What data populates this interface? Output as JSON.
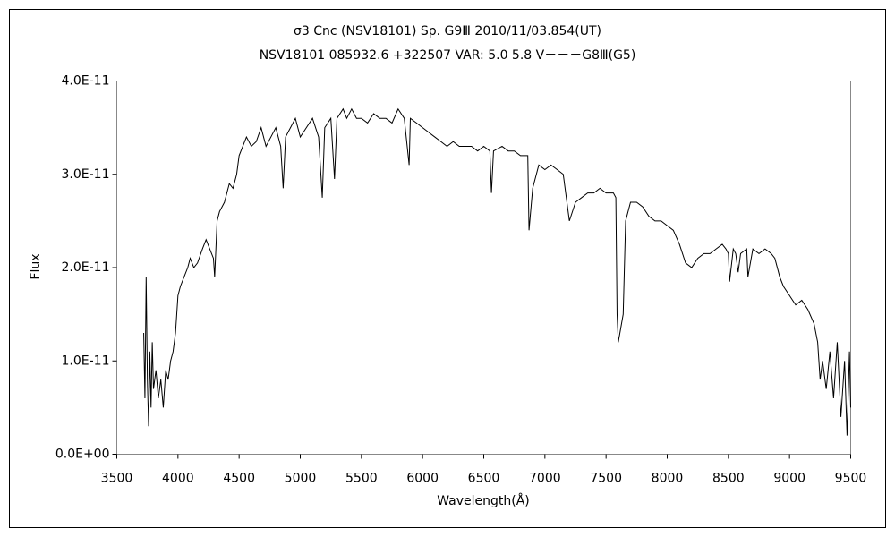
{
  "chart_data": {
    "type": "line",
    "title": "σ3 Cnc (NSV18101)     Sp. G9Ⅲ     2010/11/03.854(UT)",
    "subtitle": "NSV18101 085932.6 +322507 VAR: 5.0 5.8 V－－－G8Ⅲ(G5)",
    "x_label": "Wavelength(Å)",
    "y_label": "Flux",
    "xlim": [
      3500,
      9500
    ],
    "xticks": [
      3500,
      4000,
      4500,
      5000,
      5500,
      6000,
      6500,
      7000,
      7500,
      8000,
      8500,
      9000,
      9500
    ],
    "ylim": [
      0,
      4e-11
    ],
    "yticks": [
      {
        "value": 0,
        "label": "0.0E+00"
      },
      {
        "value": 1e-11,
        "label": "1.0E-11"
      },
      {
        "value": 2e-11,
        "label": "2.0E-11"
      },
      {
        "value": 3e-11,
        "label": "3.0E-11"
      },
      {
        "value": 4e-11,
        "label": "4.0E-11"
      }
    ],
    "series": [
      {
        "color": "#000000",
        "x": [
          3720,
          3730,
          3740,
          3750,
          3760,
          3770,
          3780,
          3790,
          3800,
          3820,
          3840,
          3860,
          3880,
          3900,
          3920,
          3940,
          3960,
          3980,
          4000,
          4020,
          4050,
          4080,
          4100,
          4130,
          4160,
          4200,
          4230,
          4260,
          4290,
          4300,
          4320,
          4340,
          4380,
          4420,
          4450,
          4480,
          4500,
          4530,
          4560,
          4600,
          4640,
          4680,
          4720,
          4760,
          4800,
          4840,
          4860,
          4880,
          4920,
          4960,
          5000,
          5050,
          5100,
          5150,
          5180,
          5200,
          5250,
          5280,
          5300,
          5350,
          5380,
          5420,
          5460,
          5500,
          5550,
          5600,
          5650,
          5700,
          5750,
          5800,
          5850,
          5890,
          5900,
          5950,
          6000,
          6050,
          6100,
          6150,
          6200,
          6250,
          6300,
          6350,
          6400,
          6450,
          6500,
          6550,
          6563,
          6580,
          6650,
          6700,
          6750,
          6800,
          6860,
          6870,
          6900,
          6920,
          6950,
          7000,
          7050,
          7100,
          7150,
          7180,
          7200,
          7250,
          7300,
          7350,
          7400,
          7450,
          7500,
          7560,
          7580,
          7590,
          7600,
          7620,
          7640,
          7660,
          7700,
          7750,
          7800,
          7850,
          7900,
          7950,
          8000,
          8050,
          8100,
          8150,
          8200,
          8250,
          8300,
          8350,
          8400,
          8450,
          8480,
          8500,
          8510,
          8540,
          8560,
          8580,
          8600,
          8650,
          8660,
          8700,
          8750,
          8800,
          8850,
          8880,
          8920,
          8950,
          9000,
          9050,
          9100,
          9150,
          9200,
          9230,
          9250,
          9270,
          9300,
          9330,
          9360,
          9390,
          9420,
          9450,
          9470,
          9490,
          9500
        ],
        "values": [
          1.3e-11,
          6e-12,
          1.9e-11,
          8e-12,
          3e-12,
          1.1e-11,
          5e-12,
          1.2e-11,
          7e-12,
          9e-12,
          6e-12,
          8e-12,
          5e-12,
          9e-12,
          8e-12,
          1e-11,
          1.1e-11,
          1.3e-11,
          1.7e-11,
          1.8e-11,
          1.9e-11,
          2e-11,
          2.1e-11,
          2e-11,
          2.05e-11,
          2.2e-11,
          2.3e-11,
          2.2e-11,
          2.1e-11,
          1.9e-11,
          2.5e-11,
          2.6e-11,
          2.7e-11,
          2.9e-11,
          2.85e-11,
          3e-11,
          3.2e-11,
          3.3e-11,
          3.4e-11,
          3.3e-11,
          3.35e-11,
          3.5e-11,
          3.3e-11,
          3.4e-11,
          3.5e-11,
          3.3e-11,
          2.85e-11,
          3.4e-11,
          3.5e-11,
          3.6e-11,
          3.4e-11,
          3.5e-11,
          3.6e-11,
          3.4e-11,
          2.75e-11,
          3.5e-11,
          3.6e-11,
          2.95e-11,
          3.6e-11,
          3.7e-11,
          3.6e-11,
          3.7e-11,
          3.6e-11,
          3.6e-11,
          3.55e-11,
          3.65e-11,
          3.6e-11,
          3.6e-11,
          3.55e-11,
          3.7e-11,
          3.6e-11,
          3.1e-11,
          3.6e-11,
          3.55e-11,
          3.5e-11,
          3.45e-11,
          3.4e-11,
          3.35e-11,
          3.3e-11,
          3.35e-11,
          3.3e-11,
          3.3e-11,
          3.3e-11,
          3.25e-11,
          3.3e-11,
          3.25e-11,
          2.8e-11,
          3.25e-11,
          3.3e-11,
          3.25e-11,
          3.25e-11,
          3.2e-11,
          3.2e-11,
          2.4e-11,
          2.85e-11,
          2.95e-11,
          3.1e-11,
          3.05e-11,
          3.1e-11,
          3.05e-11,
          3e-11,
          2.7e-11,
          2.5e-11,
          2.7e-11,
          2.75e-11,
          2.8e-11,
          2.8e-11,
          2.85e-11,
          2.8e-11,
          2.8e-11,
          2.75e-11,
          1.5e-11,
          1.2e-11,
          1.35e-11,
          1.5e-11,
          2.5e-11,
          2.7e-11,
          2.7e-11,
          2.65e-11,
          2.55e-11,
          2.5e-11,
          2.5e-11,
          2.45e-11,
          2.4e-11,
          2.25e-11,
          2.05e-11,
          2e-11,
          2.1e-11,
          2.15e-11,
          2.15e-11,
          2.2e-11,
          2.25e-11,
          2.2e-11,
          2.15e-11,
          1.85e-11,
          2.2e-11,
          2.15e-11,
          1.95e-11,
          2.15e-11,
          2.2e-11,
          1.9e-11,
          2.2e-11,
          2.15e-11,
          2.2e-11,
          2.15e-11,
          2.1e-11,
          1.9e-11,
          1.8e-11,
          1.7e-11,
          1.6e-11,
          1.65e-11,
          1.55e-11,
          1.4e-11,
          1.2e-11,
          8e-12,
          1e-11,
          7e-12,
          1.1e-11,
          6e-12,
          1.2e-11,
          4e-12,
          1e-11,
          2e-12,
          1.1e-11,
          5e-12
        ]
      }
    ]
  }
}
